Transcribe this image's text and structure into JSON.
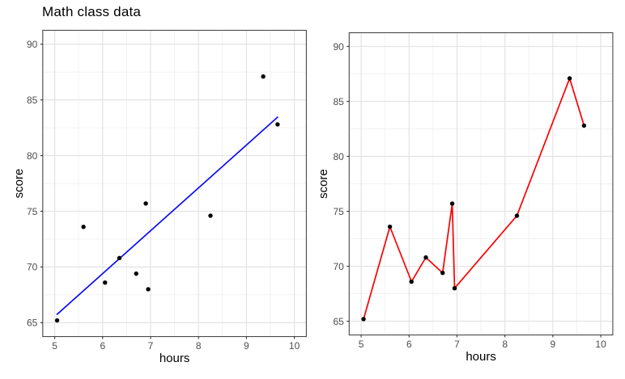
{
  "title": "Math class data",
  "style": {
    "background": "#ffffff",
    "panel_background": "#ffffff",
    "grid_major_color": "#e3e3e3",
    "grid_minor_color": "#f0f0f0",
    "panel_border_color": "#474747",
    "tick_color": "#333333",
    "tick_label_color": "#4d4d4d",
    "text_color": "#000000",
    "trend_blue": "#0b0bf2",
    "line_red": "#fb0000",
    "point_black": "#000000"
  },
  "chart_data": [
    {
      "type": "scatter",
      "title": "Math class data",
      "xlabel": "hours",
      "ylabel": "score",
      "xlim": [
        4.75,
        10.25
      ],
      "ylim": [
        63.75,
        91.25
      ],
      "x_ticks": [
        5,
        6,
        7,
        8,
        9,
        10
      ],
      "y_ticks": [
        65,
        70,
        75,
        80,
        85,
        90
      ],
      "grid": "major+minor",
      "legend": "none",
      "series": [
        {
          "name": "observations",
          "mark": "point",
          "color": "#000000",
          "data": [
            [
              5.05,
              65.2
            ],
            [
              5.6,
              73.6
            ],
            [
              6.05,
              68.6
            ],
            [
              6.35,
              70.8
            ],
            [
              6.7,
              69.4
            ],
            [
              6.9,
              75.7
            ],
            [
              6.95,
              68.0
            ],
            [
              8.25,
              74.6
            ],
            [
              9.35,
              87.1
            ],
            [
              9.65,
              82.8
            ]
          ]
        }
      ],
      "trend_line": {
        "type": "linear",
        "color": "#0b0bf2",
        "x1": 5.05,
        "y1": 65.75,
        "x2": 9.65,
        "y2": 83.45
      }
    },
    {
      "type": "line",
      "title": "",
      "xlabel": "hours",
      "ylabel": "score",
      "xlim": [
        4.75,
        10.25
      ],
      "ylim": [
        63.75,
        91.25
      ],
      "x_ticks": [
        5,
        6,
        7,
        8,
        9,
        10
      ],
      "y_ticks": [
        65,
        70,
        75,
        80,
        85,
        90
      ],
      "grid": "major+minor",
      "legend": "none",
      "series": [
        {
          "name": "observations",
          "mark": "line+point",
          "line_color": "#fb0000",
          "color": "#000000",
          "data": [
            [
              5.05,
              65.2
            ],
            [
              5.6,
              73.6
            ],
            [
              6.05,
              68.6
            ],
            [
              6.35,
              70.8
            ],
            [
              6.7,
              69.4
            ],
            [
              6.9,
              75.7
            ],
            [
              6.95,
              68.0
            ],
            [
              8.25,
              74.6
            ],
            [
              9.35,
              87.1
            ],
            [
              9.65,
              82.8
            ]
          ]
        }
      ]
    }
  ]
}
